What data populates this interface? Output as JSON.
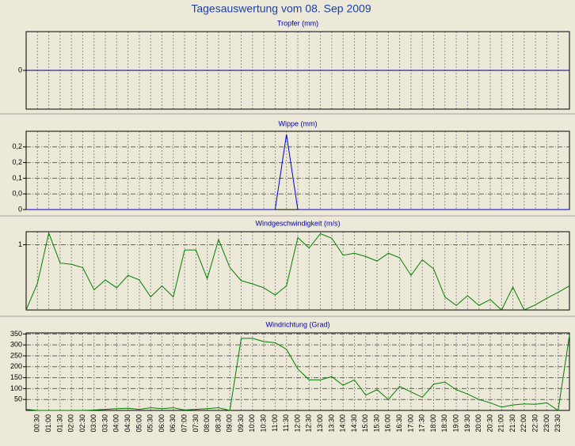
{
  "title": "Tagesauswertung vom 08. Sep 2009",
  "chart_data": [
    {
      "type": "line",
      "title": "Tropfer (mm)",
      "color": "#000080",
      "values": [
        0,
        0,
        0,
        0,
        0,
        0,
        0,
        0,
        0,
        0,
        0,
        0,
        0,
        0,
        0,
        0,
        0,
        0,
        0,
        0,
        0,
        0,
        0,
        0,
        0,
        0,
        0,
        0,
        0,
        0,
        0,
        0,
        0,
        0,
        0,
        0,
        0,
        0,
        0,
        0,
        0,
        0,
        0,
        0,
        0,
        0,
        0,
        0,
        0
      ],
      "ylim": [
        -1,
        1
      ],
      "yticks": [
        0
      ],
      "grid": true
    },
    {
      "type": "line",
      "title": "Wippe (mm)",
      "color": "#0000cc",
      "values": [
        0,
        0,
        0,
        0,
        0,
        0,
        0,
        0,
        0,
        0,
        0,
        0,
        0,
        0,
        0,
        0,
        0,
        0,
        0,
        0,
        0,
        0,
        0,
        0.24,
        0,
        0,
        0,
        0,
        0,
        0,
        0,
        0,
        0,
        0,
        0,
        0,
        0,
        0,
        0,
        0,
        0,
        0,
        0,
        0,
        0,
        0,
        0,
        0,
        0
      ],
      "ylim": [
        0,
        0.25
      ],
      "yticks": [
        {
          "value": 0.2,
          "label": "0,2"
        },
        {
          "value": 0.15,
          "label": "0,2"
        },
        {
          "value": 0.1,
          "label": "0,1"
        },
        {
          "value": 0.05,
          "label": "0,0"
        },
        0
      ],
      "grid": true
    },
    {
      "type": "line",
      "title": "Windgeschwindigkeit (m/s)",
      "color": "#008000",
      "values": [
        0,
        0.41,
        1.18,
        0.72,
        0.7,
        0.65,
        0.31,
        0.46,
        0.34,
        0.53,
        0.46,
        0.2,
        0.37,
        0.2,
        0.92,
        0.92,
        0.48,
        1.08,
        0.65,
        0.45,
        0.4,
        0.34,
        0.23,
        0.37,
        1.11,
        0.95,
        1.17,
        1.1,
        0.84,
        0.87,
        0.82,
        0.75,
        0.87,
        0.8,
        0.53,
        0.77,
        0.63,
        0.2,
        0.07,
        0.22,
        0.07,
        0.16,
        0,
        0.35,
        0,
        0.08,
        0.18,
        0.27,
        0.37
      ],
      "ylim": [
        0,
        1.2
      ],
      "yticks": [
        1
      ],
      "grid": true
    },
    {
      "type": "line",
      "title": "Windrichtung (Grad)",
      "color": "#008000",
      "categories": [
        null,
        "00:30",
        "01:00",
        "01:30",
        "02:00",
        "02:30",
        "03:00",
        "03:30",
        "04:00",
        "04:30",
        "05:00",
        "05:30",
        "06:00",
        "06:30",
        "07:00",
        "07:30",
        "08:00",
        "08:30",
        "09:00",
        "09:30",
        "10:00",
        "10:30",
        "11:00",
        "11:30",
        "12:00",
        "12:30",
        "13:00",
        "13:30",
        "14:00",
        "14:30",
        "15:00",
        "15:30",
        "16:00",
        "16:30",
        "17:00",
        "17:30",
        "18:00",
        "18:30",
        "19:00",
        "19:30",
        "20:00",
        "20:30",
        "21:00",
        "21:30",
        "22:00",
        "22:30",
        "23:00",
        "23:30",
        null
      ],
      "values": [
        5,
        0,
        0,
        0,
        0,
        0,
        2,
        5,
        8,
        10,
        5,
        12,
        8,
        12,
        2,
        5,
        8,
        12,
        0,
        330,
        330,
        315,
        310,
        280,
        190,
        140,
        140,
        155,
        115,
        140,
        70,
        95,
        50,
        110,
        85,
        60,
        120,
        130,
        95,
        75,
        50,
        35,
        15,
        25,
        30,
        28,
        35,
        0,
        345
      ],
      "ylim": [
        0,
        355
      ],
      "yticks": [
        50,
        100,
        150,
        200,
        250,
        300,
        350
      ],
      "grid": true
    }
  ]
}
